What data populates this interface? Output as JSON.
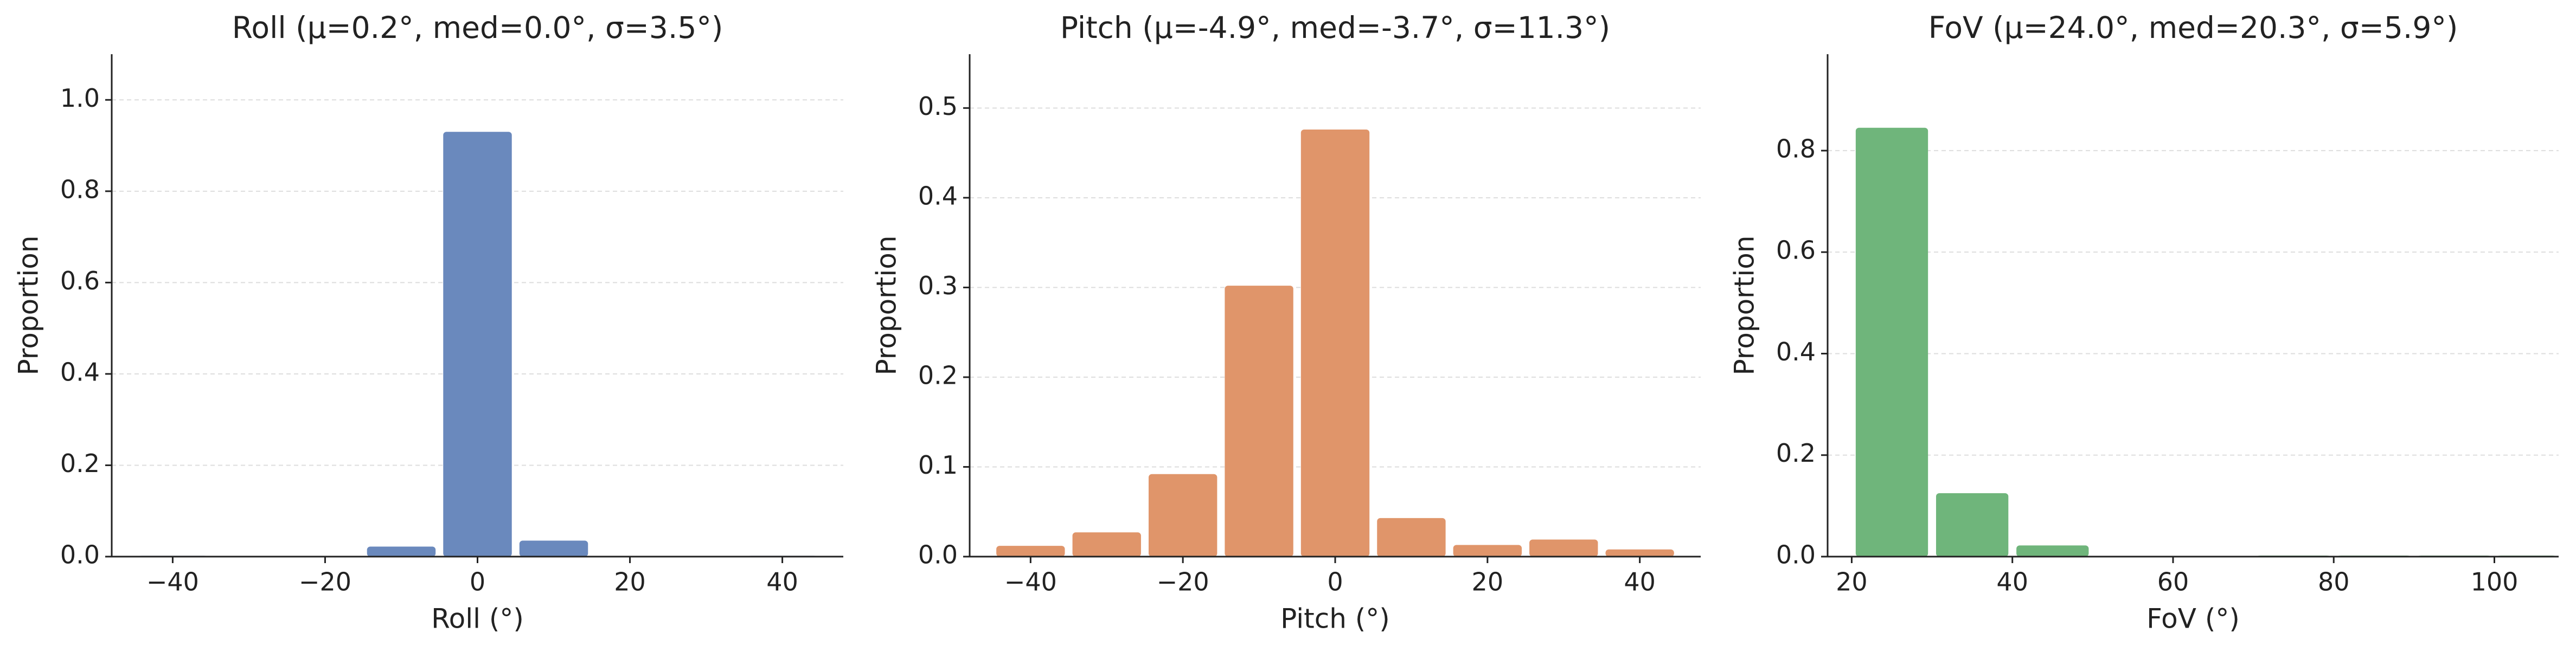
{
  "chart_data": [
    {
      "type": "histogram",
      "title": "Roll  (μ=0.2°, med=0.0°, σ=3.5°)",
      "xlabel": "Roll (°)",
      "ylabel": "Proportion",
      "bins": [
        -45,
        -35,
        -25,
        -15,
        -5,
        5,
        15,
        25,
        35,
        45
      ],
      "values": [
        0.002,
        0.001,
        0.001,
        0.022,
        0.93,
        0.035,
        0.001,
        0.001,
        0.002
      ],
      "color": "#6a89bd",
      "xlim": [
        -48,
        48
      ],
      "ylim": [
        0,
        1.1
      ],
      "xticks": [
        {
          "value": -40,
          "label": "−40"
        },
        {
          "value": -20,
          "label": "−20"
        },
        0,
        20,
        40
      ],
      "yticks": [
        {
          "value": 0,
          "label": "0.0"
        },
        0.2,
        0.4,
        0.6,
        0.8,
        {
          "value": 1,
          "label": "1.0"
        }
      ],
      "grid": true
    },
    {
      "type": "histogram",
      "title": "Pitch  (μ=-4.9°, med=-3.7°, σ=11.3°)",
      "xlabel": "Pitch (°)",
      "ylabel": "Proportion",
      "bins": [
        -45,
        -35,
        -25,
        -15,
        -5,
        5,
        15,
        25,
        35,
        45
      ],
      "values": [
        0.012,
        0.027,
        0.092,
        0.302,
        0.476,
        0.043,
        0.013,
        0.019,
        0.008
      ],
      "color": "#e0956a",
      "xlim": [
        -48,
        48
      ],
      "ylim": [
        0,
        0.56
      ],
      "xticks": [
        {
          "value": -40,
          "label": "−40"
        },
        {
          "value": -20,
          "label": "−20"
        },
        0,
        20,
        40
      ],
      "yticks": [
        {
          "value": 0,
          "label": "0.0"
        },
        0.1,
        0.2,
        0.3,
        0.4,
        0.5
      ],
      "grid": true
    },
    {
      "type": "histogram",
      "title": "FoV  (μ=24.0°, med=20.3°, σ=5.9°)",
      "xlabel": "FoV (°)",
      "ylabel": "Proportion",
      "bins": [
        20,
        30,
        40,
        50,
        60,
        70,
        80,
        90,
        100,
        108
      ],
      "values": [
        0.845,
        0.125,
        0.022,
        0.001,
        0.001,
        0.002,
        0.002,
        0.002,
        0.002
      ],
      "color": "#6fb57b",
      "xlim": [
        17,
        108
      ],
      "ylim": [
        0,
        0.99
      ],
      "xticks": [
        20,
        40,
        60,
        80,
        100
      ],
      "yticks": [
        {
          "value": 0,
          "label": "0.0"
        },
        0.2,
        0.4,
        0.6,
        0.8
      ],
      "grid": true
    }
  ]
}
